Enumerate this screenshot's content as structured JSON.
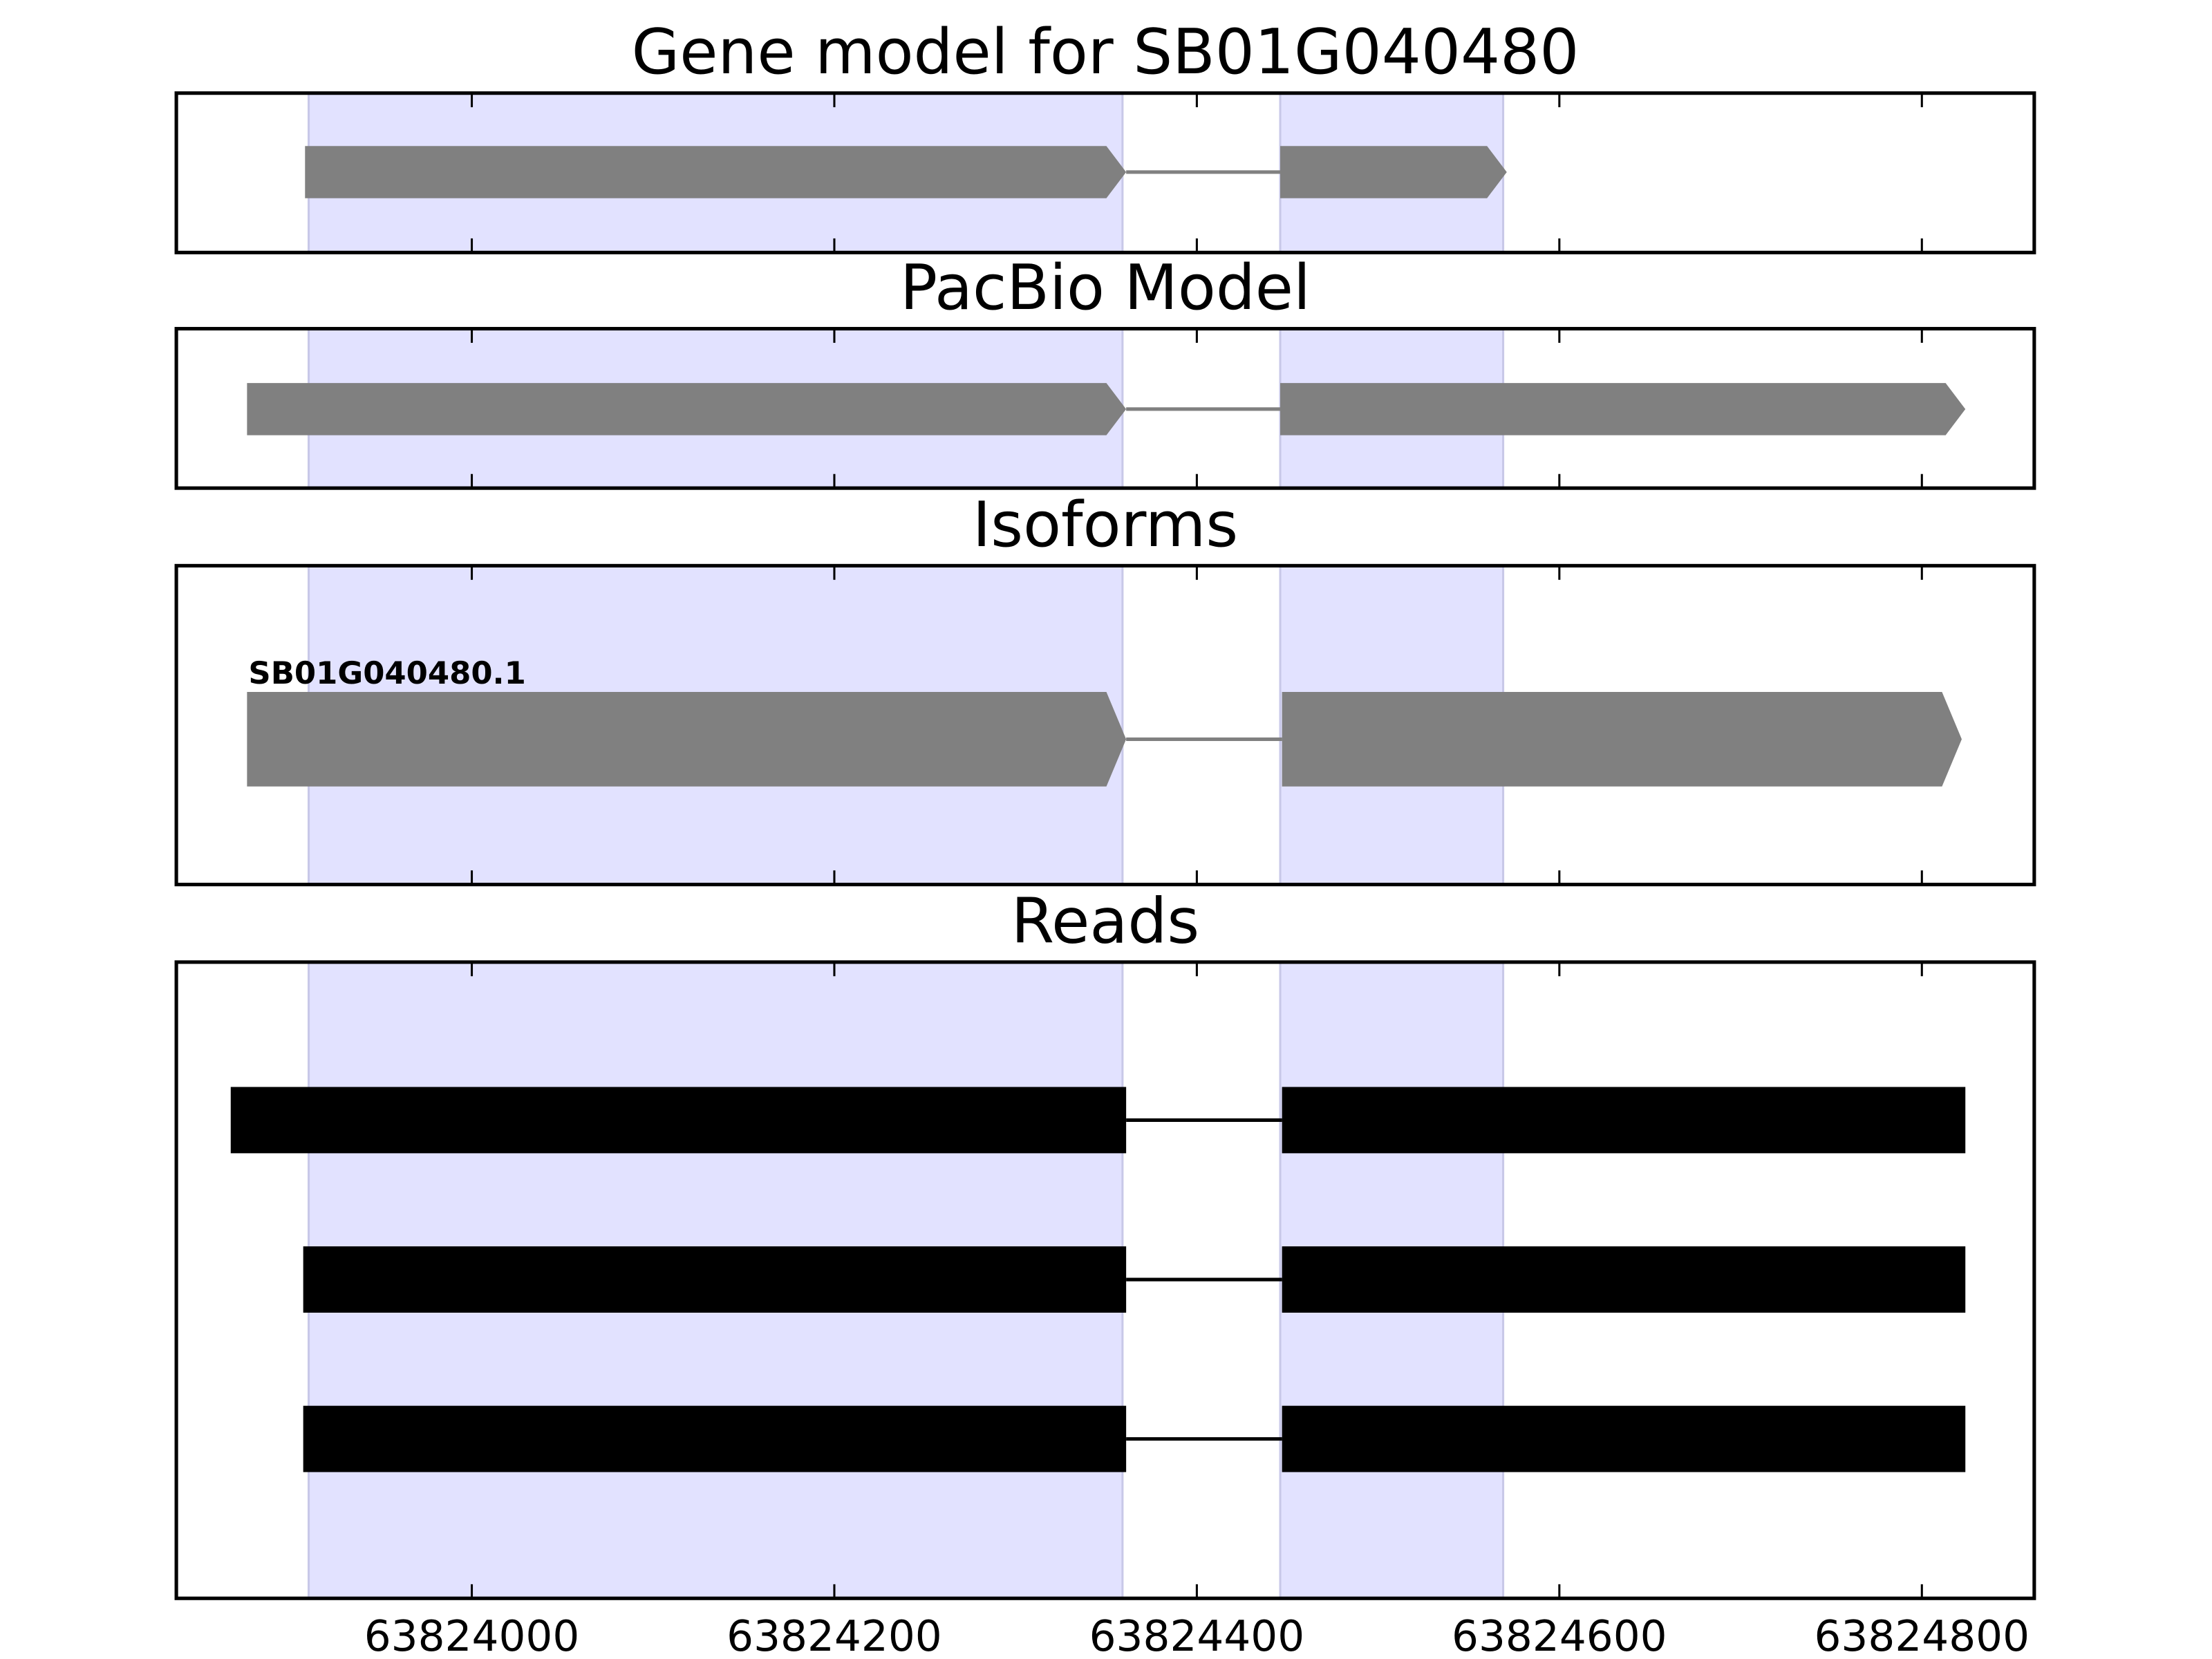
{
  "chart_data": {
    "type": "gene-tracks",
    "xlim": [
      63823837,
      63824862
    ],
    "xticks": [
      63824000,
      63824200,
      63824400,
      63824600,
      63824800
    ],
    "highlight": [
      [
        63823910,
        63824359
      ],
      [
        63824446,
        63824569
      ]
    ],
    "highlight_color": "#e2e2ff",
    "panels": [
      {
        "title": "Gene model for SB01G040480",
        "style": "arrow",
        "color": "#808080",
        "features": [
          {
            "exons": [
              [
                63823908,
                63824361
              ],
              [
                63824446,
                63824571
              ]
            ]
          }
        ]
      },
      {
        "title": "PacBio Model",
        "style": "arrow",
        "color": "#808080",
        "features": [
          {
            "exons": [
              [
                63823876,
                63824361
              ],
              [
                63824446,
                63824824
              ]
            ]
          }
        ]
      },
      {
        "title": "Isoforms",
        "style": "arrow",
        "color": "#808080",
        "features": [
          {
            "label": "SB01G040480.1",
            "exons": [
              [
                63823876,
                63824361
              ],
              [
                63824447,
                63824822
              ]
            ]
          }
        ]
      },
      {
        "title": "Reads",
        "style": "block",
        "color": "#000000",
        "features": [
          {
            "exons": [
              [
                63823867,
                63824361
              ],
              [
                63824447,
                63824824
              ]
            ]
          },
          {
            "exons": [
              [
                63823907,
                63824361
              ],
              [
                63824447,
                63824824
              ]
            ]
          },
          {
            "exons": [
              [
                63823907,
                63824361
              ],
              [
                63824447,
                63824824
              ]
            ]
          }
        ]
      }
    ]
  }
}
